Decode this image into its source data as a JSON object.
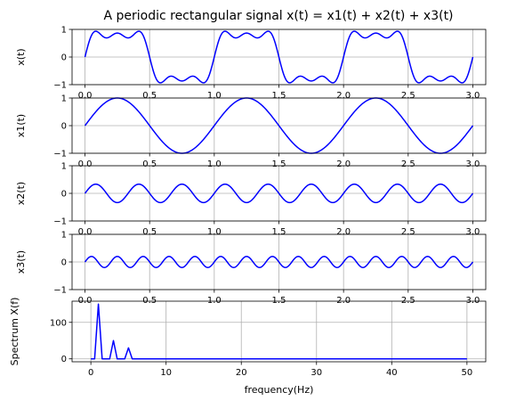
{
  "figure_title": "A periodic rectangular signal x(t) = x1(t) + x2(t) + x3(t)",
  "line_color": "#0000ff",
  "grid": true,
  "chart_data": [
    {
      "type": "line",
      "ylabel": "x(t)",
      "xlim": [
        -0.1,
        3.1
      ],
      "ylim": [
        -1,
        1
      ],
      "xticks": [
        "0.0",
        "0.5",
        "1.0",
        "1.5",
        "2.0",
        "2.5",
        "3.0"
      ],
      "yticks": [
        "-1",
        "0",
        "1"
      ],
      "series": [
        {
          "formula": "sin(2*pi*t) + (1/3)*sin(6*pi*t) + (1/5)*sin(10*pi*t)",
          "t_range": [
            0,
            3
          ]
        }
      ]
    },
    {
      "type": "line",
      "ylabel": "x1(t)",
      "xlim": [
        -0.1,
        3.1
      ],
      "ylim": [
        -1,
        1
      ],
      "xticks": [
        "0.0",
        "0.5",
        "1.0",
        "1.5",
        "2.0",
        "2.5",
        "3.0"
      ],
      "yticks": [
        "-1",
        "0",
        "1"
      ],
      "series": [
        {
          "formula": "sin(2*pi*t)",
          "t_range": [
            0,
            3
          ]
        }
      ]
    },
    {
      "type": "line",
      "ylabel": "x2(t)",
      "xlim": [
        -0.1,
        3.1
      ],
      "ylim": [
        -1,
        1
      ],
      "xticks": [
        "0.0",
        "0.5",
        "1.0",
        "1.5",
        "2.0",
        "2.5",
        "3.0"
      ],
      "yticks": [
        "-1",
        "0",
        "1"
      ],
      "series": [
        {
          "formula": "(1/3)*sin(6*pi*t)",
          "t_range": [
            0,
            3
          ]
        }
      ]
    },
    {
      "type": "line",
      "ylabel": "x3(t)",
      "xlim": [
        -0.1,
        3.1
      ],
      "ylim": [
        -1,
        1
      ],
      "xticks": [
        "0.0",
        "0.5",
        "1.0",
        "1.5",
        "2.0",
        "2.5",
        "3.0"
      ],
      "yticks": [
        "-1",
        "0",
        "1"
      ],
      "series": [
        {
          "formula": "(1/5)*sin(10*pi*t)",
          "t_range": [
            0,
            3
          ]
        }
      ]
    },
    {
      "type": "line",
      "xlabel": "frequency(Hz)",
      "ylabel": "Spectrum X(f)",
      "xlim": [
        -2.5,
        52.5
      ],
      "ylim": [
        -8,
        158
      ],
      "xticks": [
        "0",
        "10",
        "20",
        "30",
        "40",
        "50"
      ],
      "yticks": [
        "0",
        "100"
      ],
      "series": [
        {
          "x": [
            0,
            0.5,
            1,
            1.5,
            2,
            2.5,
            3,
            3.5,
            4,
            4.5,
            5,
            5.5,
            6,
            50
          ],
          "y": [
            0,
            0,
            150,
            0,
            0,
            0,
            50,
            0,
            0,
            0,
            30,
            0,
            0,
            0
          ]
        }
      ]
    }
  ]
}
